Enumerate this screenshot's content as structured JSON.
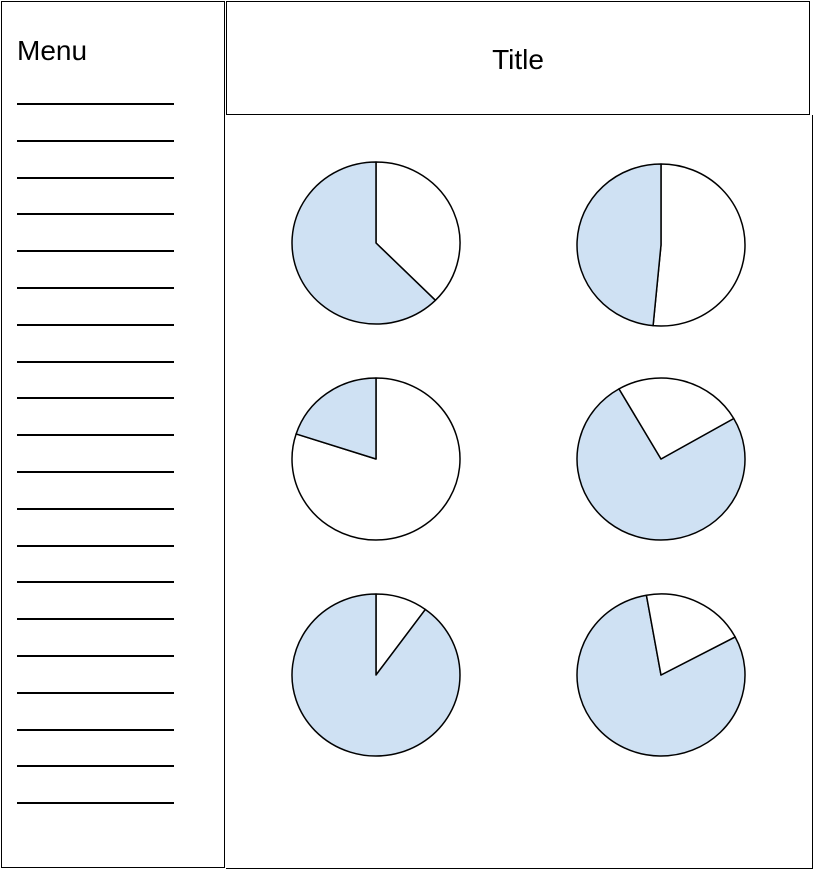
{
  "sidebar": {
    "title": "Menu",
    "item_count": 20
  },
  "header": {
    "title": "Title"
  },
  "colors": {
    "slice_fill": "#cfe1f3",
    "outline": "#000000",
    "background": "#ffffff"
  },
  "chart_data": [
    {
      "type": "pie",
      "slices": [
        {
          "share": 0.375,
          "fill": "white"
        },
        {
          "share": 0.625,
          "fill": "blue"
        }
      ]
    },
    {
      "type": "pie",
      "slices": [
        {
          "share": 0.515,
          "fill": "white"
        },
        {
          "share": 0.485,
          "fill": "blue"
        }
      ]
    },
    {
      "type": "pie",
      "slices": [
        {
          "share": 0.8,
          "fill": "white"
        },
        {
          "share": 0.2,
          "fill": "blue"
        }
      ]
    },
    {
      "type": "pie",
      "slices": [
        {
          "share": 0.75,
          "fill": "blue"
        },
        {
          "share": 0.25,
          "fill": "white"
        }
      ]
    },
    {
      "type": "pie",
      "slices": [
        {
          "share": 0.1,
          "fill": "white"
        },
        {
          "share": 0.9,
          "fill": "blue"
        }
      ]
    },
    {
      "type": "pie",
      "slices": [
        {
          "share": 0.8,
          "fill": "blue"
        },
        {
          "share": 0.2,
          "fill": "white"
        }
      ]
    }
  ]
}
